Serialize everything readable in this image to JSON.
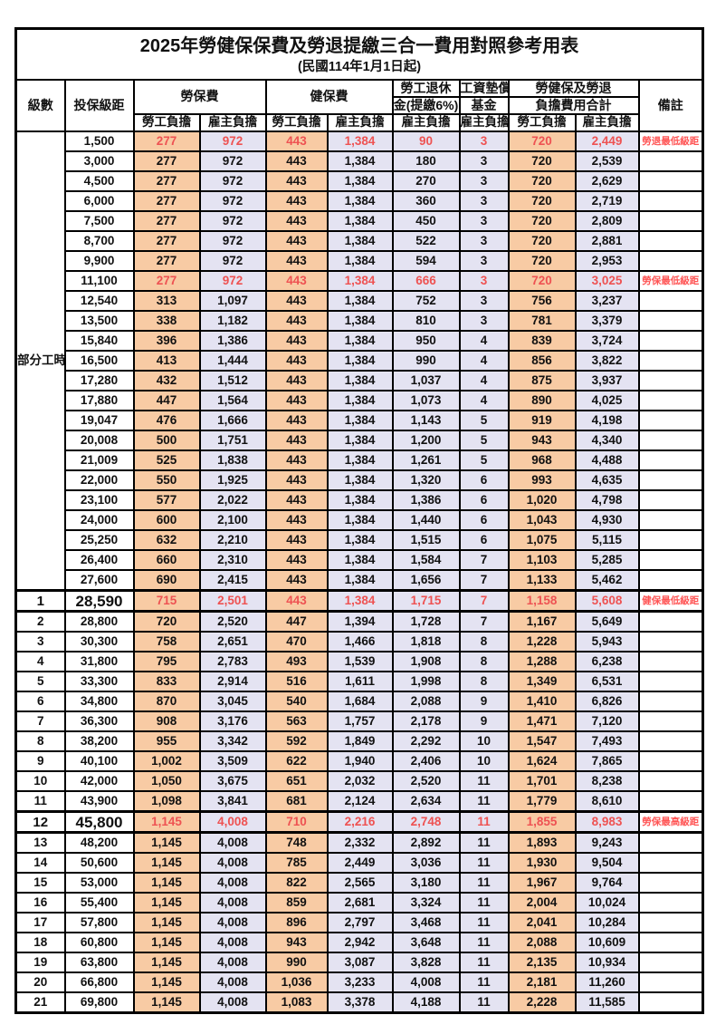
{
  "title": "2025年勞健保保費及勞退提繳三合一費用對照參考用表",
  "subtitle": "(民國114年1月1日起)",
  "header": {
    "level": "級數",
    "salary": "投保級距",
    "labor": "勞保費",
    "health": "健保費",
    "pension_line1": "勞工退休",
    "pension_line2": "金(提繳6%)",
    "wage_fund_line1": "工資墊償",
    "wage_fund_line2": "基金",
    "total_line1": "勞健保及勞退",
    "total_line2": "負擔費用合計",
    "note": "備註",
    "employee_label": "勞工負擔",
    "employer_label": "雇主負擔"
  },
  "part_time_label": "部分工時",
  "colors": {
    "employee_bg": "#F8CBA4",
    "employer_bg": "#E4E3F2",
    "highlight_red": "#EE5252",
    "note_red": "#FF5454",
    "border": "#000000"
  },
  "rows": [
    {
      "level": "",
      "salary": "1,500",
      "values": [
        "277",
        "972",
        "443",
        "1,384",
        "90",
        "3",
        "720",
        "2,449"
      ],
      "note": "勞退最低級距",
      "red": true,
      "emphasis": false
    },
    {
      "level": "",
      "salary": "3,000",
      "values": [
        "277",
        "972",
        "443",
        "1,384",
        "180",
        "3",
        "720",
        "2,539"
      ],
      "note": "",
      "red": false,
      "emphasis": false
    },
    {
      "level": "",
      "salary": "4,500",
      "values": [
        "277",
        "972",
        "443",
        "1,384",
        "270",
        "3",
        "720",
        "2,629"
      ],
      "note": "",
      "red": false,
      "emphasis": false
    },
    {
      "level": "",
      "salary": "6,000",
      "values": [
        "277",
        "972",
        "443",
        "1,384",
        "360",
        "3",
        "720",
        "2,719"
      ],
      "note": "",
      "red": false,
      "emphasis": false
    },
    {
      "level": "",
      "salary": "7,500",
      "values": [
        "277",
        "972",
        "443",
        "1,384",
        "450",
        "3",
        "720",
        "2,809"
      ],
      "note": "",
      "red": false,
      "emphasis": false
    },
    {
      "level": "",
      "salary": "8,700",
      "values": [
        "277",
        "972",
        "443",
        "1,384",
        "522",
        "3",
        "720",
        "2,881"
      ],
      "note": "",
      "red": false,
      "emphasis": false
    },
    {
      "level": "",
      "salary": "9,900",
      "values": [
        "277",
        "972",
        "443",
        "1,384",
        "594",
        "3",
        "720",
        "2,953"
      ],
      "note": "",
      "red": false,
      "emphasis": false
    },
    {
      "level": "",
      "salary": "11,100",
      "values": [
        "277",
        "972",
        "443",
        "1,384",
        "666",
        "3",
        "720",
        "3,025"
      ],
      "note": "勞保最低級距",
      "red": true,
      "emphasis": false
    },
    {
      "level": "",
      "salary": "12,540",
      "values": [
        "313",
        "1,097",
        "443",
        "1,384",
        "752",
        "3",
        "756",
        "3,237"
      ],
      "note": "",
      "red": false,
      "emphasis": false
    },
    {
      "level": "",
      "salary": "13,500",
      "values": [
        "338",
        "1,182",
        "443",
        "1,384",
        "810",
        "3",
        "781",
        "3,379"
      ],
      "note": "",
      "red": false,
      "emphasis": false
    },
    {
      "level": "",
      "salary": "15,840",
      "values": [
        "396",
        "1,386",
        "443",
        "1,384",
        "950",
        "4",
        "839",
        "3,724"
      ],
      "note": "",
      "red": false,
      "emphasis": false
    },
    {
      "level": "",
      "salary": "16,500",
      "values": [
        "413",
        "1,444",
        "443",
        "1,384",
        "990",
        "4",
        "856",
        "3,822"
      ],
      "note": "",
      "red": false,
      "emphasis": false
    },
    {
      "level": "",
      "salary": "17,280",
      "values": [
        "432",
        "1,512",
        "443",
        "1,384",
        "1,037",
        "4",
        "875",
        "3,937"
      ],
      "note": "",
      "red": false,
      "emphasis": false
    },
    {
      "level": "",
      "salary": "17,880",
      "values": [
        "447",
        "1,564",
        "443",
        "1,384",
        "1,073",
        "4",
        "890",
        "4,025"
      ],
      "note": "",
      "red": false,
      "emphasis": false
    },
    {
      "level": "",
      "salary": "19,047",
      "values": [
        "476",
        "1,666",
        "443",
        "1,384",
        "1,143",
        "5",
        "919",
        "4,198"
      ],
      "note": "",
      "red": false,
      "emphasis": false
    },
    {
      "level": "",
      "salary": "20,008",
      "values": [
        "500",
        "1,751",
        "443",
        "1,384",
        "1,200",
        "5",
        "943",
        "4,340"
      ],
      "note": "",
      "red": false,
      "emphasis": false
    },
    {
      "level": "",
      "salary": "21,009",
      "values": [
        "525",
        "1,838",
        "443",
        "1,384",
        "1,261",
        "5",
        "968",
        "4,488"
      ],
      "note": "",
      "red": false,
      "emphasis": false
    },
    {
      "level": "",
      "salary": "22,000",
      "values": [
        "550",
        "1,925",
        "443",
        "1,384",
        "1,320",
        "6",
        "993",
        "4,635"
      ],
      "note": "",
      "red": false,
      "emphasis": false
    },
    {
      "level": "",
      "salary": "23,100",
      "values": [
        "577",
        "2,022",
        "443",
        "1,384",
        "1,386",
        "6",
        "1,020",
        "4,798"
      ],
      "note": "",
      "red": false,
      "emphasis": false
    },
    {
      "level": "",
      "salary": "24,000",
      "values": [
        "600",
        "2,100",
        "443",
        "1,384",
        "1,440",
        "6",
        "1,043",
        "4,930"
      ],
      "note": "",
      "red": false,
      "emphasis": false
    },
    {
      "level": "",
      "salary": "25,250",
      "values": [
        "632",
        "2,210",
        "443",
        "1,384",
        "1,515",
        "6",
        "1,075",
        "5,115"
      ],
      "note": "",
      "red": false,
      "emphasis": false
    },
    {
      "level": "",
      "salary": "26,400",
      "values": [
        "660",
        "2,310",
        "443",
        "1,384",
        "1,584",
        "7",
        "1,103",
        "5,285"
      ],
      "note": "",
      "red": false,
      "emphasis": false
    },
    {
      "level": "",
      "salary": "27,600",
      "values": [
        "690",
        "2,415",
        "443",
        "1,384",
        "1,656",
        "7",
        "1,133",
        "5,462"
      ],
      "note": "",
      "red": false,
      "emphasis": false
    },
    {
      "level": "1",
      "salary": "28,590",
      "values": [
        "715",
        "2,501",
        "443",
        "1,384",
        "1,715",
        "7",
        "1,158",
        "5,608"
      ],
      "note": "健保最低級距",
      "red": true,
      "emphasis": true
    },
    {
      "level": "2",
      "salary": "28,800",
      "values": [
        "720",
        "2,520",
        "447",
        "1,394",
        "1,728",
        "7",
        "1,167",
        "5,649"
      ],
      "note": "",
      "red": false,
      "emphasis": false
    },
    {
      "level": "3",
      "salary": "30,300",
      "values": [
        "758",
        "2,651",
        "470",
        "1,466",
        "1,818",
        "8",
        "1,228",
        "5,943"
      ],
      "note": "",
      "red": false,
      "emphasis": false
    },
    {
      "level": "4",
      "salary": "31,800",
      "values": [
        "795",
        "2,783",
        "493",
        "1,539",
        "1,908",
        "8",
        "1,288",
        "6,238"
      ],
      "note": "",
      "red": false,
      "emphasis": false
    },
    {
      "level": "5",
      "salary": "33,300",
      "values": [
        "833",
        "2,914",
        "516",
        "1,611",
        "1,998",
        "8",
        "1,349",
        "6,531"
      ],
      "note": "",
      "red": false,
      "emphasis": false
    },
    {
      "level": "6",
      "salary": "34,800",
      "values": [
        "870",
        "3,045",
        "540",
        "1,684",
        "2,088",
        "9",
        "1,410",
        "6,826"
      ],
      "note": "",
      "red": false,
      "emphasis": false
    },
    {
      "level": "7",
      "salary": "36,300",
      "values": [
        "908",
        "3,176",
        "563",
        "1,757",
        "2,178",
        "9",
        "1,471",
        "7,120"
      ],
      "note": "",
      "red": false,
      "emphasis": false
    },
    {
      "level": "8",
      "salary": "38,200",
      "values": [
        "955",
        "3,342",
        "592",
        "1,849",
        "2,292",
        "10",
        "1,547",
        "7,493"
      ],
      "note": "",
      "red": false,
      "emphasis": false
    },
    {
      "level": "9",
      "salary": "40,100",
      "values": [
        "1,002",
        "3,509",
        "622",
        "1,940",
        "2,406",
        "10",
        "1,624",
        "7,865"
      ],
      "note": "",
      "red": false,
      "emphasis": false
    },
    {
      "level": "10",
      "salary": "42,000",
      "values": [
        "1,050",
        "3,675",
        "651",
        "2,032",
        "2,520",
        "11",
        "1,701",
        "8,238"
      ],
      "note": "",
      "red": false,
      "emphasis": false
    },
    {
      "level": "11",
      "salary": "43,900",
      "values": [
        "1,098",
        "3,841",
        "681",
        "2,124",
        "2,634",
        "11",
        "1,779",
        "8,610"
      ],
      "note": "",
      "red": false,
      "emphasis": false
    },
    {
      "level": "12",
      "salary": "45,800",
      "values": [
        "1,145",
        "4,008",
        "710",
        "2,216",
        "2,748",
        "11",
        "1,855",
        "8,983"
      ],
      "note": "勞保最高級距",
      "red": true,
      "emphasis": true
    },
    {
      "level": "13",
      "salary": "48,200",
      "values": [
        "1,145",
        "4,008",
        "748",
        "2,332",
        "2,892",
        "11",
        "1,893",
        "9,243"
      ],
      "note": "",
      "red": false,
      "emphasis": false
    },
    {
      "level": "14",
      "salary": "50,600",
      "values": [
        "1,145",
        "4,008",
        "785",
        "2,449",
        "3,036",
        "11",
        "1,930",
        "9,504"
      ],
      "note": "",
      "red": false,
      "emphasis": false
    },
    {
      "level": "15",
      "salary": "53,000",
      "values": [
        "1,145",
        "4,008",
        "822",
        "2,565",
        "3,180",
        "11",
        "1,967",
        "9,764"
      ],
      "note": "",
      "red": false,
      "emphasis": false
    },
    {
      "level": "16",
      "salary": "55,400",
      "values": [
        "1,145",
        "4,008",
        "859",
        "2,681",
        "3,324",
        "11",
        "2,004",
        "10,024"
      ],
      "note": "",
      "red": false,
      "emphasis": false
    },
    {
      "level": "17",
      "salary": "57,800",
      "values": [
        "1,145",
        "4,008",
        "896",
        "2,797",
        "3,468",
        "11",
        "2,041",
        "10,284"
      ],
      "note": "",
      "red": false,
      "emphasis": false
    },
    {
      "level": "18",
      "salary": "60,800",
      "values": [
        "1,145",
        "4,008",
        "943",
        "2,942",
        "3,648",
        "11",
        "2,088",
        "10,609"
      ],
      "note": "",
      "red": false,
      "emphasis": false
    },
    {
      "level": "19",
      "salary": "63,800",
      "values": [
        "1,145",
        "4,008",
        "990",
        "3,087",
        "3,828",
        "11",
        "2,135",
        "10,934"
      ],
      "note": "",
      "red": false,
      "emphasis": false
    },
    {
      "level": "20",
      "salary": "66,800",
      "values": [
        "1,145",
        "4,008",
        "1,036",
        "3,233",
        "4,008",
        "11",
        "2,181",
        "11,260"
      ],
      "note": "",
      "red": false,
      "emphasis": false
    },
    {
      "level": "21",
      "salary": "69,800",
      "values": [
        "1,145",
        "4,008",
        "1,083",
        "3,378",
        "4,188",
        "11",
        "2,228",
        "11,585"
      ],
      "note": "",
      "red": false,
      "emphasis": false
    }
  ]
}
